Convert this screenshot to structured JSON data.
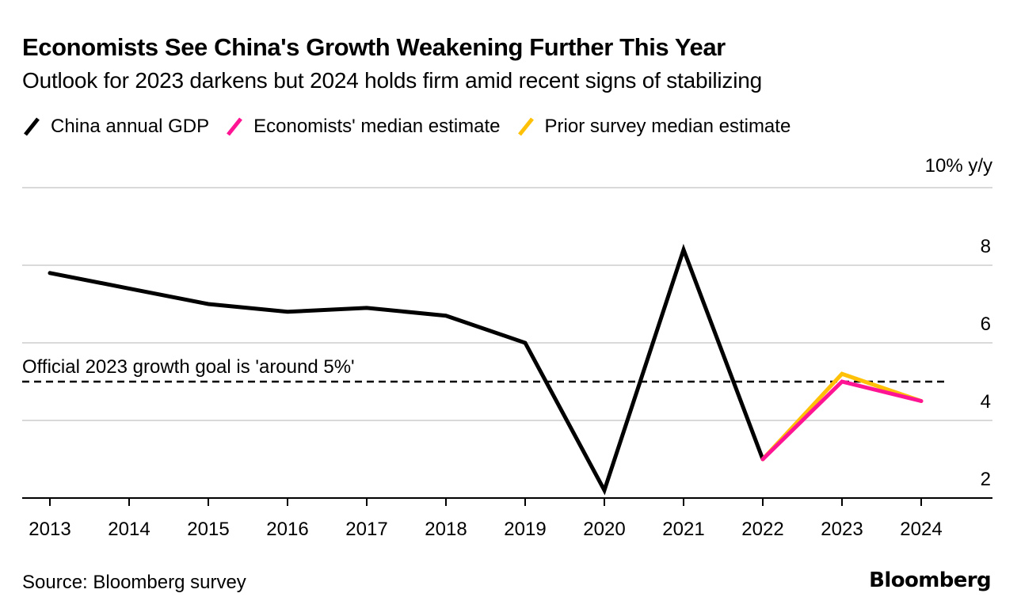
{
  "chart_data": {
    "type": "line",
    "title": "Economists See China's Growth Weakening Further This Year",
    "subtitle": "Outlook for 2023 darkens but 2024 holds firm amid recent signs of stabilizing",
    "ylabel": "10% y/y",
    "xlabel": "",
    "ylim": [
      2,
      10
    ],
    "y_ticks": [
      2,
      4,
      6,
      8,
      10
    ],
    "y_tick_labels": [
      "2",
      "4",
      "6",
      "8",
      "10% y/y"
    ],
    "x_ticks": [
      "2013",
      "2014",
      "2015",
      "2016",
      "2017",
      "2018",
      "2019",
      "2020",
      "2021",
      "2022",
      "2023",
      "2024"
    ],
    "grid": true,
    "legend_position": "top-left",
    "series": [
      {
        "name": "China annual GDP",
        "color": "#000000",
        "x": [
          "2013",
          "2014",
          "2015",
          "2016",
          "2017",
          "2018",
          "2019",
          "2020",
          "2021",
          "2022"
        ],
        "values": [
          7.8,
          7.4,
          7.0,
          6.8,
          6.9,
          6.7,
          6.0,
          2.2,
          8.4,
          3.0
        ]
      },
      {
        "name": "Prior survey median estimate",
        "color": "#FFC107",
        "x": [
          "2022",
          "2023",
          "2024"
        ],
        "values": [
          3.0,
          5.2,
          4.5
        ]
      },
      {
        "name": "Economists' median estimate",
        "color": "#FF1493",
        "x": [
          "2022",
          "2023",
          "2024"
        ],
        "values": [
          3.0,
          5.0,
          4.5
        ]
      }
    ],
    "annotations": [
      {
        "text": "Official 2023 growth goal is 'around 5%'",
        "type": "hline",
        "y": 5.0,
        "style": "dashed"
      }
    ]
  },
  "legend": [
    {
      "label": "China annual GDP",
      "color": "#000000"
    },
    {
      "label": "Economists' median estimate",
      "color": "#FF1493"
    },
    {
      "label": "Prior survey median estimate",
      "color": "#FFC107"
    }
  ],
  "footer": {
    "source": "Source: Bloomberg survey",
    "brand": "Bloomberg"
  }
}
